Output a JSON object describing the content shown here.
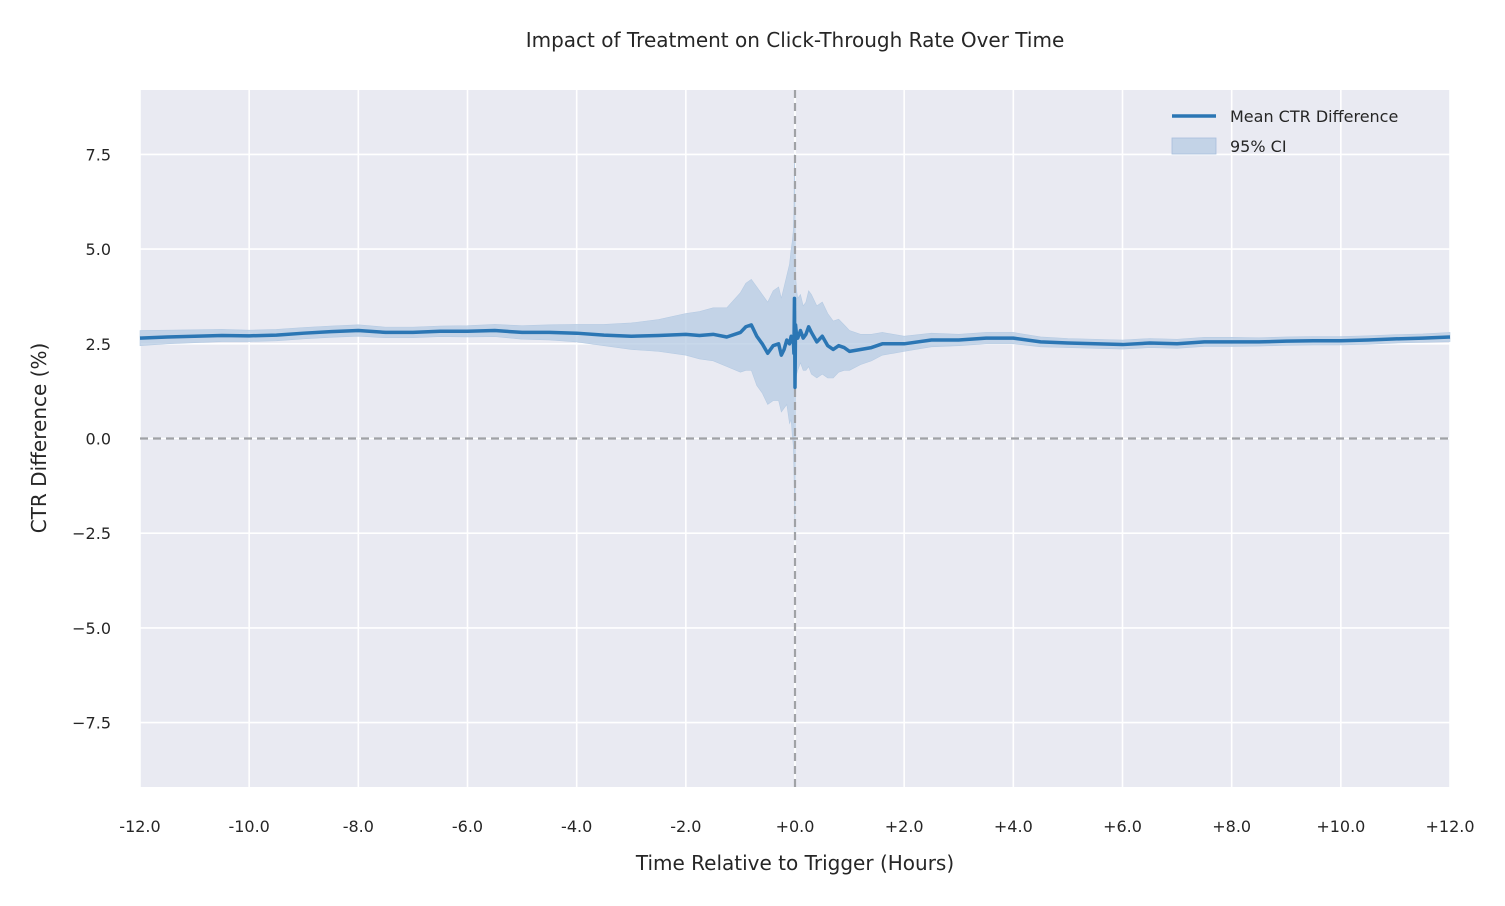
{
  "chart_data": {
    "type": "line",
    "title": "Impact of Treatment on Click-Through Rate Over Time",
    "xlabel": "Time Relative to Trigger (Hours)",
    "ylabel": "CTR Difference (%)",
    "xlim": [
      -12,
      12
    ],
    "ylim": [
      -9.2,
      9.2
    ],
    "x_ticks": [
      -12,
      -10,
      -8,
      -6,
      -4,
      -2,
      0,
      2,
      4,
      6,
      8,
      10,
      12
    ],
    "x_tick_labels": [
      "-12.0",
      "-10.0",
      "-8.0",
      "-6.0",
      "-4.0",
      "-2.0",
      "+0.0",
      "+2.0",
      "+4.0",
      "+6.0",
      "+8.0",
      "+10.0",
      "+12.0"
    ],
    "y_ticks": [
      7.5,
      5.0,
      2.5,
      0.0,
      -2.5,
      -5.0,
      -7.5
    ],
    "y_tick_labels": [
      "7.5",
      "5.0",
      "2.5",
      "0.0",
      "−2.5",
      "−5.0",
      "−7.5"
    ],
    "grid": true,
    "legend_position": "top-right",
    "reference_lines": {
      "x": 0,
      "y": 0
    },
    "colors": {
      "line": "#2b76b4",
      "band": "#b6cbe3",
      "background": "#e9eaf2",
      "grid": "#ffffff",
      "reference": "#a0a2a6"
    },
    "series": [
      {
        "name": "Mean CTR Difference",
        "x": [
          -12,
          -11.5,
          -11,
          -10.5,
          -10,
          -9.5,
          -9,
          -8.5,
          -8,
          -7.5,
          -7,
          -6.5,
          -6,
          -5.5,
          -5,
          -4.5,
          -4,
          -3.5,
          -3,
          -2.5,
          -2,
          -1.75,
          -1.5,
          -1.25,
          -1,
          -0.9,
          -0.8,
          -0.7,
          -0.6,
          -0.5,
          -0.4,
          -0.3,
          -0.25,
          -0.2,
          -0.15,
          -0.1,
          -0.07,
          -0.05,
          -0.03,
          -0.02,
          -0.01,
          0,
          0.01,
          0.03,
          0.05,
          0.1,
          0.15,
          0.2,
          0.25,
          0.3,
          0.4,
          0.5,
          0.6,
          0.7,
          0.8,
          0.9,
          1,
          1.2,
          1.4,
          1.6,
          1.8,
          2,
          2.5,
          3,
          3.5,
          4,
          4.5,
          5,
          5.5,
          6,
          6.5,
          7,
          7.5,
          8,
          8.5,
          9,
          9.5,
          10,
          10.5,
          11,
          11.5,
          12
        ],
        "y": [
          2.65,
          2.68,
          2.7,
          2.72,
          2.71,
          2.73,
          2.78,
          2.82,
          2.85,
          2.8,
          2.8,
          2.83,
          2.83,
          2.85,
          2.8,
          2.8,
          2.78,
          2.73,
          2.7,
          2.72,
          2.75,
          2.72,
          2.75,
          2.68,
          2.8,
          2.95,
          3.0,
          2.7,
          2.5,
          2.25,
          2.45,
          2.5,
          2.2,
          2.35,
          2.6,
          2.5,
          2.7,
          2.55,
          2.6,
          2.25,
          3.7,
          1.35,
          3.0,
          2.7,
          2.65,
          2.85,
          2.65,
          2.75,
          2.95,
          2.8,
          2.55,
          2.7,
          2.45,
          2.35,
          2.45,
          2.4,
          2.3,
          2.35,
          2.4,
          2.5,
          2.5,
          2.5,
          2.6,
          2.6,
          2.65,
          2.65,
          2.55,
          2.52,
          2.5,
          2.48,
          2.52,
          2.5,
          2.55,
          2.55,
          2.55,
          2.57,
          2.58,
          2.58,
          2.6,
          2.63,
          2.65,
          2.68
        ]
      },
      {
        "name": "95% CI",
        "x": [
          -12,
          -11.5,
          -11,
          -10.5,
          -10,
          -9.5,
          -9,
          -8.5,
          -8,
          -7.5,
          -7,
          -6.5,
          -6,
          -5.5,
          -5,
          -4.5,
          -4,
          -3.5,
          -3,
          -2.5,
          -2,
          -1.75,
          -1.5,
          -1.25,
          -1,
          -0.9,
          -0.8,
          -0.7,
          -0.6,
          -0.5,
          -0.4,
          -0.3,
          -0.25,
          -0.2,
          -0.15,
          -0.1,
          -0.07,
          -0.05,
          -0.03,
          -0.02,
          -0.01,
          0,
          0.01,
          0.03,
          0.05,
          0.1,
          0.15,
          0.2,
          0.25,
          0.3,
          0.4,
          0.5,
          0.6,
          0.7,
          0.8,
          0.9,
          1,
          1.2,
          1.4,
          1.6,
          1.8,
          2,
          2.5,
          3,
          3.5,
          4,
          4.5,
          5,
          5.5,
          6,
          6.5,
          7,
          7.5,
          8,
          8.5,
          9,
          9.5,
          10,
          10.5,
          11,
          11.5,
          12
        ],
        "lower": [
          2.45,
          2.5,
          2.53,
          2.56,
          2.56,
          2.58,
          2.63,
          2.67,
          2.7,
          2.66,
          2.66,
          2.69,
          2.68,
          2.69,
          2.62,
          2.6,
          2.55,
          2.45,
          2.35,
          2.3,
          2.2,
          2.1,
          2.05,
          1.9,
          1.75,
          1.8,
          1.8,
          1.4,
          1.2,
          0.9,
          1.0,
          1.0,
          0.7,
          0.8,
          0.9,
          0.4,
          0.5,
          0.1,
          -0.2,
          -0.8,
          -1.5,
          -2.7,
          1.5,
          1.7,
          1.8,
          2.0,
          1.8,
          1.8,
          1.9,
          1.7,
          1.6,
          1.7,
          1.6,
          1.6,
          1.75,
          1.8,
          1.8,
          1.95,
          2.05,
          2.2,
          2.25,
          2.3,
          2.42,
          2.45,
          2.5,
          2.5,
          2.42,
          2.4,
          2.38,
          2.36,
          2.4,
          2.38,
          2.43,
          2.43,
          2.44,
          2.46,
          2.47,
          2.47,
          2.49,
          2.52,
          2.54,
          2.56
        ],
        "upper": [
          2.85,
          2.86,
          2.87,
          2.88,
          2.86,
          2.88,
          2.93,
          2.97,
          3.0,
          2.94,
          2.94,
          2.97,
          2.98,
          3.01,
          2.98,
          3.0,
          3.01,
          3.01,
          3.05,
          3.14,
          3.3,
          3.35,
          3.45,
          3.45,
          3.85,
          4.1,
          4.2,
          4.0,
          3.8,
          3.6,
          3.9,
          4.0,
          3.7,
          4.0,
          4.3,
          4.6,
          5.0,
          5.2,
          5.5,
          6.0,
          7.5,
          6.5,
          4.3,
          3.9,
          3.7,
          3.8,
          3.5,
          3.6,
          3.9,
          3.8,
          3.5,
          3.6,
          3.3,
          3.1,
          3.15,
          3.0,
          2.85,
          2.75,
          2.75,
          2.8,
          2.75,
          2.7,
          2.78,
          2.75,
          2.8,
          2.8,
          2.68,
          2.64,
          2.62,
          2.6,
          2.64,
          2.62,
          2.67,
          2.67,
          2.66,
          2.68,
          2.69,
          2.69,
          2.71,
          2.74,
          2.76,
          2.8
        ]
      }
    ]
  }
}
